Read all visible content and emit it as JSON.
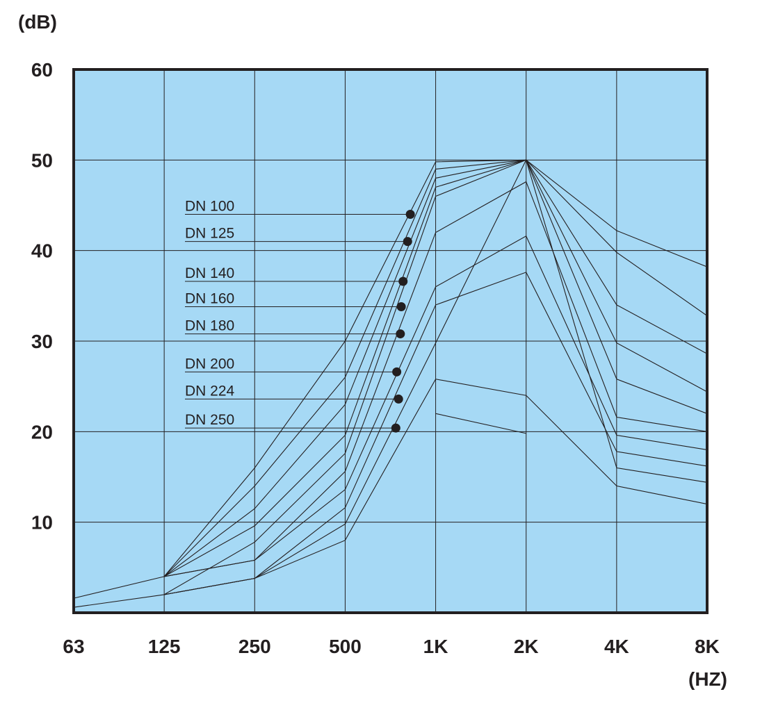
{
  "chart_data": {
    "type": "line",
    "ylabel": "(dB)",
    "xlabel": "(HZ)",
    "x": [
      "63",
      "125",
      "250",
      "500",
      "1K",
      "2K",
      "4K",
      "8K"
    ],
    "xscale": "log",
    "ylim": [
      0,
      60
    ],
    "yticks": [
      "10",
      "20",
      "30",
      "40",
      "50",
      "60"
    ],
    "grid": true,
    "colors": {
      "plot_background": "#a6d9f5",
      "frame": "#231f20",
      "lines": "#231f20"
    },
    "series": [
      {
        "name": "DN 100",
        "values": [
          null,
          4.0,
          16.0,
          30.0,
          49.8,
          50.0,
          42.2,
          38.2
        ]
      },
      {
        "name": "DN 125",
        "values": [
          null,
          4.0,
          14.0,
          26.0,
          49.0,
          50.0,
          39.8,
          32.8
        ]
      },
      {
        "name": "DN 140",
        "values": [
          null,
          4.0,
          11.5,
          23.0,
          48.0,
          50.0,
          34.0,
          28.6
        ]
      },
      {
        "name": "DN 160",
        "values": [
          null,
          4.0,
          9.6,
          19.6,
          47.0,
          50.0,
          29.8,
          24.4
        ]
      },
      {
        "name": "DN 180",
        "values": [
          null,
          2.0,
          7.8,
          17.6,
          46.0,
          50.0,
          25.8,
          22.0
        ]
      },
      {
        "name": "DN 200",
        "values": [
          null,
          4.0,
          5.8,
          15.6,
          42.0,
          47.6,
          21.6,
          20.0
        ]
      },
      {
        "name": "DN 224",
        "values": [
          1.6,
          4.0,
          5.8,
          13.6,
          36.0,
          41.6,
          19.6,
          18.0
        ]
      },
      {
        "name": "DN 250",
        "values": [
          0.6,
          2.0,
          3.8,
          11.6,
          34.0,
          37.6,
          17.8,
          16.2
        ]
      },
      {
        "values": [
          null,
          2.0,
          3.8,
          9.8,
          29.8,
          50.0,
          16.0,
          14.4
        ]
      },
      {
        "values": [
          null,
          2.0,
          3.8,
          8.0,
          25.8,
          24.0,
          14.0,
          12.0
        ]
      },
      {
        "values": [
          null,
          null,
          null,
          null,
          22.0,
          19.8,
          null,
          10.0
        ]
      }
    ],
    "labels": [
      {
        "text": "DN 100",
        "point": [
          0.72,
          44.0
        ]
      },
      {
        "text": "DN 125",
        "point": [
          0.69,
          41.0
        ]
      },
      {
        "text": "DN 140",
        "point": [
          0.64,
          36.6
        ]
      },
      {
        "text": "DN 160",
        "point": [
          0.62,
          33.8
        ]
      },
      {
        "text": "DN 180",
        "point": [
          0.61,
          30.8
        ]
      },
      {
        "text": "DN 200",
        "point": [
          0.57,
          26.6
        ]
      },
      {
        "text": "DN 224",
        "point": [
          0.59,
          23.6
        ]
      },
      {
        "text": "DN 250",
        "point": [
          0.56,
          20.4
        ]
      }
    ]
  }
}
